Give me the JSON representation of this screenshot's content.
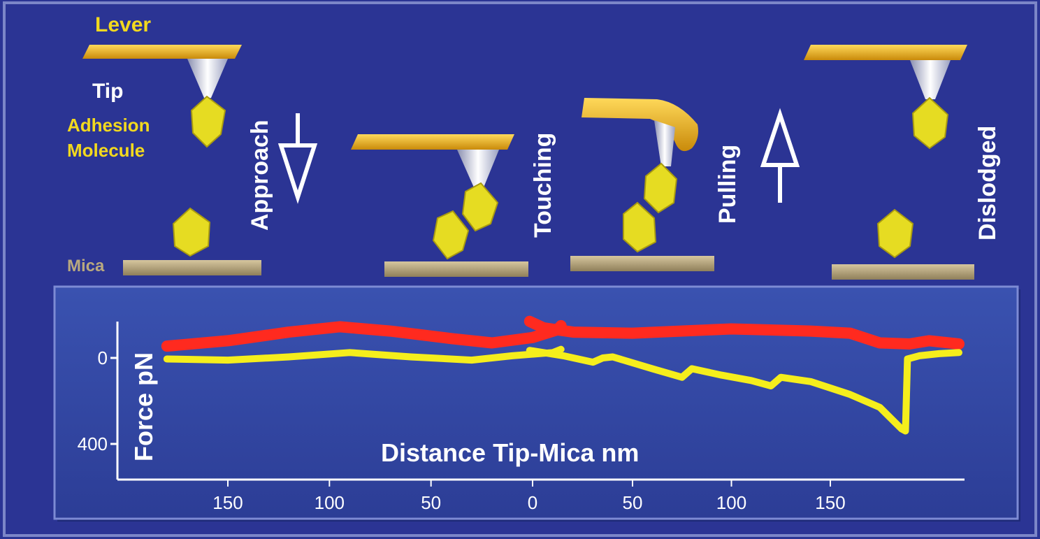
{
  "labels": {
    "lever": "Lever",
    "tip": "Tip",
    "adhesion_line1": "Adhesion",
    "adhesion_line2": "Molecule",
    "mica": "Mica"
  },
  "stages": [
    "Approach",
    "Touching",
    "Pulling",
    "Dislodged"
  ],
  "colors": {
    "background": "#2b3494",
    "panel": "#3246a4",
    "lever": "#f2b51c",
    "molecule": "#e6dc22",
    "mica": "#b4a37c",
    "approach_trace": "#ff2a1f",
    "retract_trace": "#f5ee1c",
    "label_yellow": "#f2d91e"
  },
  "chart_data": {
    "type": "line",
    "title": "",
    "xlabel": "Distance Tip-Mica nm",
    "ylabel": "Force pN",
    "y_ticks": [
      "0",
      "400"
    ],
    "y_tick_values": [
      0,
      400
    ],
    "left_x_ticks": [
      "150",
      "100",
      "50",
      "0"
    ],
    "left_x_tick_values": [
      150,
      100,
      50,
      0
    ],
    "right_x_ticks": [
      "50",
      "100",
      "150"
    ],
    "right_x_tick_values": [
      50,
      100,
      150
    ],
    "ylim": [
      -190,
      420
    ],
    "left_xlim": [
      185,
      -15
    ],
    "right_xlim": [
      -5,
      220
    ],
    "series": [
      {
        "key": "approach",
        "panel": "left",
        "x": [
          180,
          150,
          120,
          95,
          70,
          40,
          20,
          0,
          -12,
          -14
        ],
        "y": [
          -55,
          -80,
          -120,
          -145,
          -125,
          -90,
          -70,
          -95,
          -130,
          -150
        ]
      },
      {
        "key": "approach",
        "panel": "right",
        "x": [
          -2,
          5,
          20,
          50,
          100,
          140,
          160,
          175,
          190,
          200,
          215
        ],
        "y": [
          -170,
          -140,
          -120,
          -115,
          -135,
          -125,
          -115,
          -70,
          -65,
          -80,
          -65
        ]
      },
      {
        "key": "retract",
        "panel": "left",
        "x": [
          180,
          150,
          120,
          90,
          60,
          30,
          10,
          -10,
          -14
        ],
        "y": [
          5,
          10,
          -5,
          -25,
          -5,
          10,
          -10,
          -25,
          -40
        ]
      },
      {
        "key": "retract",
        "panel": "right",
        "x": [
          -2,
          15,
          30,
          35,
          40,
          60,
          75,
          80,
          95,
          110,
          120,
          125,
          140,
          160,
          175,
          186,
          188,
          189,
          195,
          205,
          215
        ],
        "y": [
          -35,
          -10,
          20,
          0,
          -5,
          50,
          90,
          50,
          80,
          105,
          130,
          90,
          110,
          170,
          230,
          330,
          340,
          5,
          -10,
          -20,
          -25
        ]
      }
    ]
  }
}
